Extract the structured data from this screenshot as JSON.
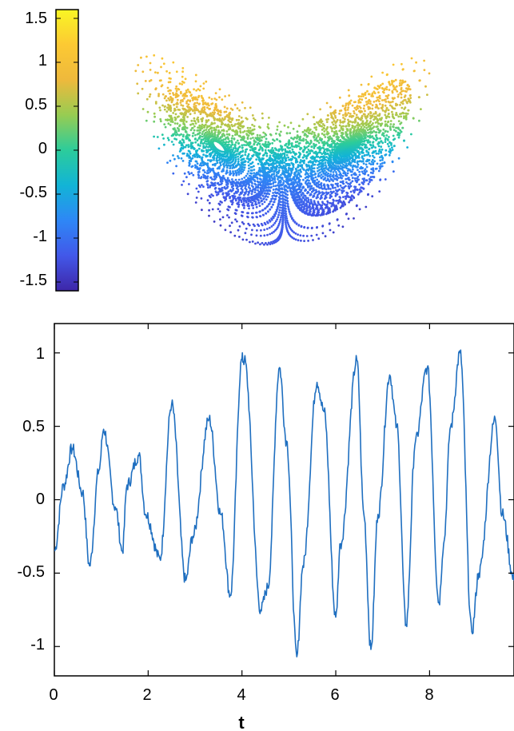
{
  "chart_data": [
    {
      "type": "scatter",
      "title": "",
      "xlabel": "",
      "ylabel": "",
      "description_values": {
        "shape": "two-lobed butterfly attractor point cloud",
        "color_by": "signal value"
      },
      "colorbar": {
        "range": [
          -1.6,
          1.6
        ],
        "ticks": [
          "1.5",
          "1",
          "0.5",
          "0",
          "-0.5",
          "-1",
          "-1.5"
        ],
        "tick_values": [
          1.5,
          1,
          0.5,
          0,
          -0.5,
          -1,
          -1.5
        ],
        "colormap": "parula",
        "colors": [
          "#3e26a8",
          "#4258e9",
          "#2e87f6",
          "#12b4d6",
          "#2ccc9b",
          "#97cc52",
          "#eeb93c",
          "#fcc933",
          "#f9f624"
        ]
      }
    },
    {
      "type": "line",
      "title": "",
      "xlabel": "t",
      "ylabel": "",
      "xlim": [
        0,
        9.8
      ],
      "ylim": [
        -1.2,
        1.2
      ],
      "x_ticks": [
        "0",
        "2",
        "4",
        "6",
        "8"
      ],
      "x_tick_values": [
        0,
        2,
        4,
        6,
        8
      ],
      "y_ticks": [
        "1",
        "0.5",
        "0",
        "-0.5",
        "-1"
      ],
      "y_tick_values": [
        1,
        0.5,
        0,
        -0.5,
        -1
      ],
      "line_color": "#1f6fc0",
      "series": [
        {
          "x": [
            0,
            0.2,
            0.38,
            0.6,
            0.75,
            0.95,
            1.05,
            1.3,
            1.45,
            1.55,
            1.8,
            1.95,
            2.25,
            2.5,
            2.8,
            2.95,
            3.3,
            3.55,
            3.75,
            4.0,
            4.05,
            4.4,
            4.55,
            4.8,
            4.95,
            5.17,
            5.3,
            5.6,
            5.75,
            6.0,
            6.1,
            6.45,
            6.6,
            6.75,
            6.9,
            7.15,
            7.3,
            7.5,
            7.7,
            7.95,
            8.2,
            8.3,
            8.45,
            8.65,
            8.9,
            9.05,
            9.4,
            9.55,
            9.8
          ],
          "y": [
            -0.35,
            0.1,
            0.35,
            0.05,
            -0.45,
            0.2,
            0.48,
            -0.05,
            -0.35,
            0.1,
            0.3,
            -0.1,
            -0.4,
            0.65,
            -0.55,
            -0.25,
            0.55,
            -0.1,
            -0.65,
            0.96,
            0.95,
            -0.75,
            -0.6,
            0.9,
            0.4,
            -1.07,
            -0.45,
            0.8,
            0.6,
            -0.8,
            -0.3,
            0.95,
            -0.1,
            -1.02,
            -0.1,
            0.85,
            0.5,
            -0.85,
            0.4,
            0.9,
            -0.7,
            -0.3,
            0.5,
            1.0,
            -0.9,
            -0.5,
            0.55,
            -0.1,
            -0.55
          ]
        }
      ]
    }
  ]
}
